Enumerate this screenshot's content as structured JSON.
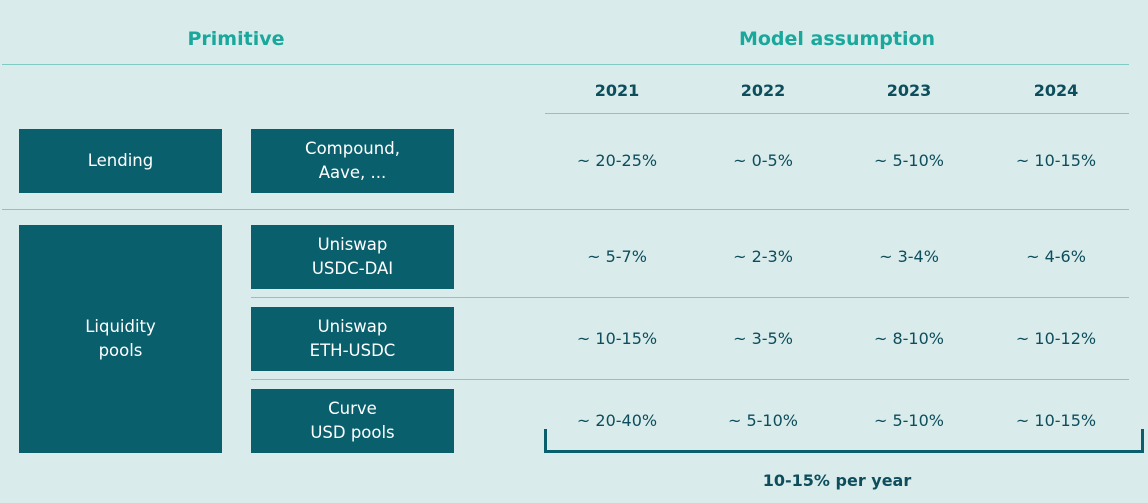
{
  "headers": {
    "primitive": "Primitive",
    "model": "Model assumption"
  },
  "years": [
    "2021",
    "2022",
    "2023",
    "2024"
  ],
  "categories": [
    {
      "label": "Lending"
    },
    {
      "label": "Liquidity\npools"
    }
  ],
  "rows": [
    {
      "name": "Compound,\nAave, ...",
      "values": [
        "~ 20-25%",
        "~ 0-5%",
        "~ 5-10%",
        "~ 10-15%"
      ]
    },
    {
      "name": "Uniswap\nUSDC-DAI",
      "values": [
        "~ 5-7%",
        "~ 2-3%",
        "~ 3-4%",
        "~ 4-6%"
      ]
    },
    {
      "name": "Uniswap\nETH-USDC",
      "values": [
        "~ 10-15%",
        "~ 3-5%",
        "~ 8-10%",
        "~ 10-12%"
      ]
    },
    {
      "name": "Curve\nUSD pools",
      "values": [
        "~ 20-40%",
        "~ 5-10%",
        "~ 5-10%",
        "~ 10-15%"
      ]
    }
  ],
  "bracket_label": "10-15% per year",
  "colors": {
    "background": "#d9eceb",
    "header_teal": "#1aa79c",
    "box": "#0a5f6d",
    "text_dark": "#0d4d5c",
    "rule": "#7ecbc4"
  },
  "chart_data": {
    "type": "table",
    "columns": [
      "2021",
      "2022",
      "2023",
      "2024"
    ],
    "groups": [
      {
        "primitive": "Lending",
        "rows": [
          {
            "name": "Compound, Aave, ...",
            "values": [
              "~ 20-25%",
              "~ 0-5%",
              "~ 5-10%",
              "~ 10-15%"
            ]
          }
        ]
      },
      {
        "primitive": "Liquidity pools",
        "rows": [
          {
            "name": "Uniswap USDC-DAI",
            "values": [
              "~ 5-7%",
              "~ 2-3%",
              "~ 3-4%",
              "~ 4-6%"
            ]
          },
          {
            "name": "Uniswap ETH-USDC",
            "values": [
              "~ 10-15%",
              "~ 3-5%",
              "~ 8-10%",
              "~ 10-12%"
            ]
          },
          {
            "name": "Curve USD pools",
            "values": [
              "~ 20-40%",
              "~ 5-10%",
              "~ 5-10%",
              "~ 10-15%"
            ]
          }
        ]
      }
    ],
    "annotation": "10-15% per year"
  }
}
